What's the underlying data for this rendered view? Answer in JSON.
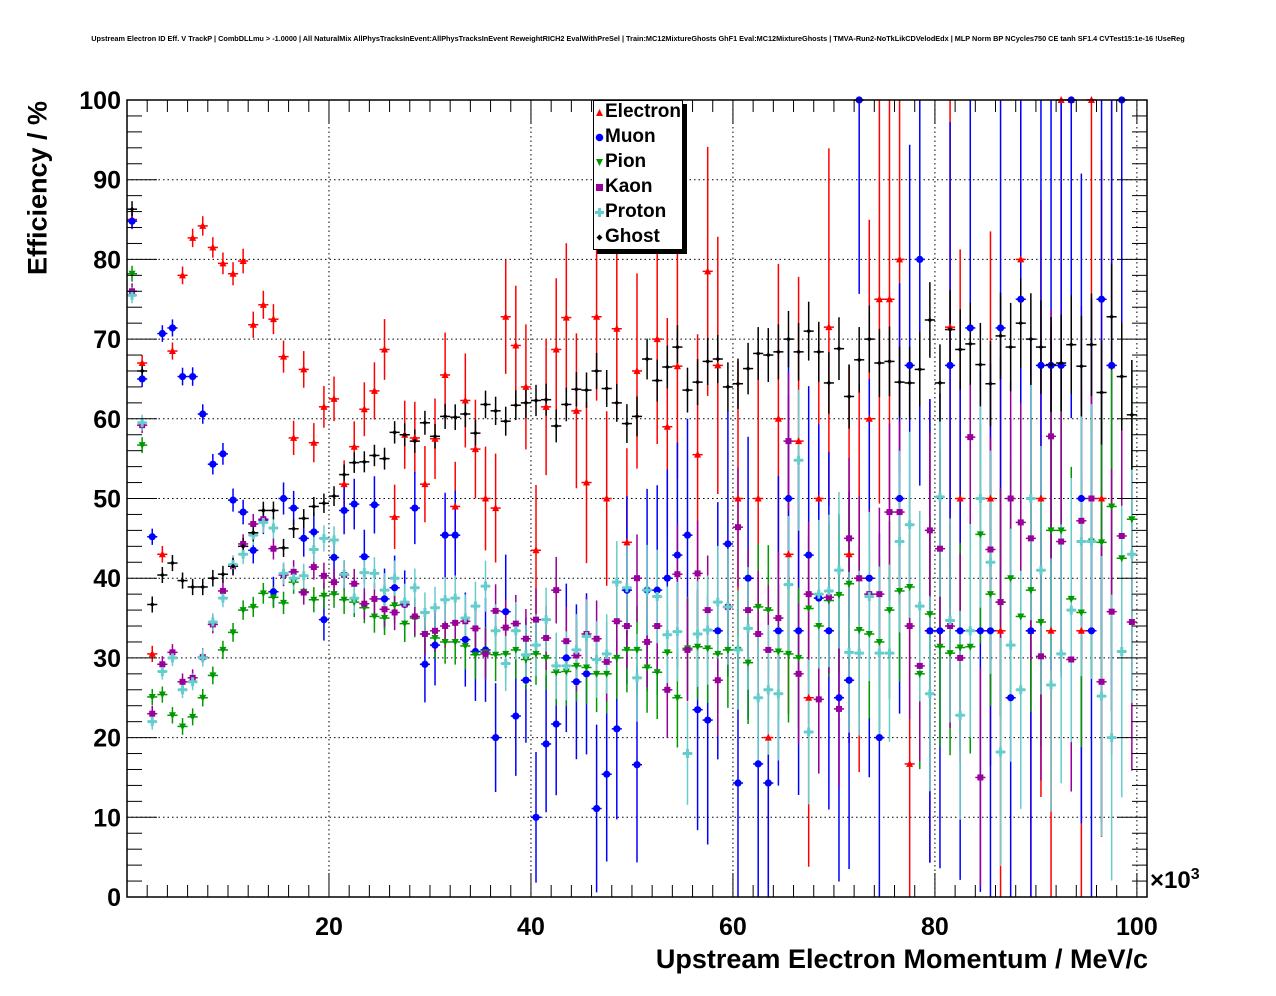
{
  "chart_data": {
    "type": "scatter",
    "title": "Upstream Electron ID Eff. V TrackP | CombDLLmu > -1.0000 | All NaturalMix AllPhysTracksInEvent:AllPhysTracksInEvent ReweightRICH2 EvalWithPreSel | Train:MC12MixtureGhosts GhF1 Eval:MC12MixtureGhosts | TMVA-Run2-NoTkLikCDVelodEdx | MLP Norm BP NCycles750 CE tanh SF1.4 CVTest15:1e-16 !UseReg",
    "xlabel": "Upstream Electron Momentum / MeV/c",
    "ylabel": "Efficiency / %",
    "x_multiplier": "×10",
    "x_multiplier_exp": "3",
    "xlim": [
      0,
      101
    ],
    "ylim": [
      0,
      100
    ],
    "x_bin_width": 1,
    "x_first_bin_center": 0.5,
    "xticks": [
      20,
      40,
      60,
      80,
      100
    ],
    "xtick_labels": [
      "20",
      "40",
      "60",
      "80",
      "100"
    ],
    "yticks": [
      0,
      10,
      20,
      30,
      40,
      50,
      60,
      70,
      80,
      90,
      100
    ],
    "ytick_labels": [
      "0",
      "10",
      "20",
      "30",
      "40",
      "50",
      "60",
      "70",
      "80",
      "90",
      "100"
    ],
    "grid": true,
    "legend_placement": "top-center",
    "series": [
      {
        "name": "Electron",
        "color": "#ff0000",
        "marker": "triangle-up",
        "values": [
          85,
          67,
          30.5,
          43,
          68.5,
          78,
          82.7,
          84.2,
          81.5,
          79.5,
          78.2,
          79.8,
          71.8,
          74.3,
          72.5,
          67.8,
          57.6,
          66.2,
          57,
          61.5,
          62.5,
          51.8,
          56.5,
          61.2,
          63.5,
          68.7,
          47.7,
          58,
          57.6,
          51.8,
          57.5,
          65.5,
          49,
          62.3,
          56.2,
          50,
          48.8,
          72.8,
          69.2,
          64,
          43.5,
          61.5,
          68.7,
          72.7,
          61,
          52,
          72.8,
          50,
          71.3,
          44.5,
          66,
          null,
          70,
          59,
          66.6,
          null,
          55.5,
          78.5,
          66.7,
          null,
          50,
          null,
          50,
          20,
          60,
          43,
          57.2,
          25,
          50,
          71.5,
          null,
          43,
          40,
          60,
          75,
          75,
          80,
          16.7,
          null,
          33.4,
          null,
          71.5,
          50,
          null,
          null,
          50,
          33.4,
          null,
          80,
          33.4,
          50,
          33.4,
          100,
          100,
          33.4,
          100,
          50,
          66.7,
          null,
          null
        ]
      },
      {
        "name": "Muon",
        "color": "#0000ff",
        "marker": "circle",
        "values": [
          84.8,
          65,
          45.2,
          70.7,
          71.4,
          65.3,
          65.3,
          60.6,
          54.3,
          55.6,
          49.8,
          48.3,
          43.5,
          47.3,
          38.3,
          50,
          48.8,
          45,
          45.8,
          34.8,
          42.6,
          48.5,
          49.3,
          42.7,
          49.2,
          37.4,
          38.8,
          36.7,
          48.8,
          29.2,
          31.6,
          45.4,
          45.4,
          32.3,
          30.8,
          31,
          20,
          35.8,
          22.7,
          27.2,
          10,
          19.2,
          21.7,
          30,
          27,
          28,
          11.1,
          15.4,
          21.1,
          38.5,
          16.6,
          38.5,
          38.5,
          40,
          42.9,
          45.4,
          23.5,
          22.2,
          33.4,
          44.3,
          14.3,
          40,
          16.7,
          14.3,
          33.4,
          50,
          33.4,
          42.9,
          37.5,
          33.4,
          25,
          27.2,
          100,
          40,
          20,
          null,
          50,
          66.7,
          80,
          33.4,
          33.4,
          66.7,
          33.4,
          71.4,
          33.4,
          33.4,
          71.4,
          25,
          75,
          33.4,
          66.7,
          66.7,
          66.7,
          100,
          50,
          33.4,
          75,
          66.7,
          100,
          null
        ]
      },
      {
        "name": "Pion",
        "color": "#009900",
        "marker": "triangle-down",
        "values": [
          78.2,
          56.7,
          25.1,
          25.4,
          22.8,
          21.4,
          22.6,
          25,
          27.8,
          31,
          33.2,
          36,
          36.4,
          38.1,
          37.6,
          36.9,
          39.5,
          38.3,
          37.3,
          37.8,
          38,
          37.3,
          37,
          36.3,
          35.2,
          35,
          36.6,
          34.3,
          35,
          33,
          32.5,
          32,
          32,
          31.5,
          30.4,
          30.7,
          30.4,
          30.5,
          31,
          29.8,
          30.5,
          30,
          28.2,
          28.3,
          29,
          28.8,
          28,
          28,
          30,
          31,
          31,
          28.8,
          28.2,
          30.7,
          25,
          31.2,
          31.4,
          31.2,
          30.5,
          31,
          31,
          29.4,
          36.4,
          36,
          30.8,
          30.5,
          30,
          36.2,
          34,
          37.2,
          37.9,
          39.3,
          33.5,
          33,
          32,
          36,
          38.4,
          38.9,
          28,
          35.5,
          31.4,
          30.6,
          31.3,
          31.4,
          45.5,
          38,
          37,
          40,
          35.2,
          38.5,
          34.5,
          46,
          46,
          37.4,
          35.7,
          44.6,
          44.5,
          49,
          42.5,
          47.4
        ]
      },
      {
        "name": "Kaon",
        "color": "#990099",
        "marker": "square",
        "values": [
          76,
          59.2,
          23,
          29.2,
          30.7,
          27,
          27.5,
          30.1,
          34.2,
          38.4,
          41.5,
          44.3,
          46.8,
          47.4,
          43.7,
          40.4,
          40.8,
          38.2,
          41.4,
          40.3,
          39.5,
          40.4,
          39.3,
          36.8,
          37.4,
          36.1,
          35.7,
          36.7,
          35.2,
          33,
          33.4,
          34,
          34.4,
          34.6,
          33.7,
          30.5,
          35.9,
          33.8,
          34.3,
          32.4,
          34.8,
          32.5,
          38.5,
          32.1,
          30.3,
          33,
          32.4,
          29.5,
          34.6,
          34,
          40,
          32,
          34,
          26,
          40.5,
          31,
          40.6,
          36,
          27.2,
          36.4,
          46.4,
          36,
          33,
          31,
          35,
          57.2,
          28,
          38,
          24.8,
          37.6,
          23.6,
          45,
          40,
          38,
          38,
          48.3,
          48.3,
          34,
          29,
          46,
          43.7,
          34,
          30,
          57.7,
          15,
          43.6,
          37,
          50,
          47,
          45,
          30.2,
          57.8,
          44.6,
          29.8,
          47.2,
          50,
          27,
          35.8,
          45.3,
          34.5
        ]
      },
      {
        "name": "Proton",
        "color": "#66cccc",
        "marker": "cross",
        "values": [
          75.5,
          59.5,
          22,
          28.3,
          30,
          26,
          27,
          30,
          34.5,
          37.5,
          41.7,
          43,
          45.4,
          47,
          46.3,
          40.6,
          40,
          40.3,
          43.6,
          45,
          44.8,
          40.5,
          37.5,
          40.7,
          40.6,
          38.5,
          40,
          37,
          38.8,
          35.7,
          36.3,
          37.3,
          37.5,
          35,
          36.5,
          39,
          33.4,
          29.3,
          33.4,
          30.4,
          31.6,
          34.8,
          29,
          29,
          31,
          32.7,
          29.8,
          30.5,
          39.5,
          38.8,
          27.5,
          38.5,
          37.7,
          32.9,
          33.3,
          18,
          33,
          33.5,
          37,
          36.4,
          31,
          33.7,
          25,
          26,
          25.5,
          39.2,
          54.8,
          20.7,
          38,
          38.4,
          41,
          30.7,
          30.6,
          37.7,
          30.6,
          30.6,
          44.6,
          46.7,
          36.5,
          25.5,
          50.2,
          34.7,
          22.8,
          33.4,
          50,
          42,
          18.2,
          31.6,
          26,
          50,
          41,
          26.6,
          30.5,
          36,
          44.6,
          44.6,
          25.2,
          20,
          30.8,
          43
        ]
      },
      {
        "name": "Ghost",
        "color": "#000000",
        "marker": "diamond",
        "values": [
          86.3,
          66,
          36.7,
          40.4,
          41.9,
          39.7,
          38.9,
          38.9,
          40,
          40.5,
          41.5,
          44,
          45.7,
          48.5,
          48.5,
          43.8,
          46.2,
          47.5,
          49,
          49.4,
          50.3,
          53,
          54.5,
          54.6,
          55.4,
          55,
          58.3,
          58,
          57.2,
          59.5,
          57.8,
          60.3,
          60.2,
          60.6,
          58.2,
          61.8,
          61,
          59.7,
          61.7,
          62,
          62.3,
          62.4,
          59.1,
          61.8,
          63.7,
          63.6,
          66,
          63.8,
          62,
          59.4,
          60.3,
          67.5,
          64.8,
          66.5,
          69,
          63.6,
          64.6,
          67.2,
          67.5,
          64,
          64.4,
          66.3,
          68.2,
          68,
          68.4,
          70,
          68.4,
          71,
          68.4,
          64.5,
          68.8,
          62.8,
          67.4,
          70,
          67,
          67.2,
          64.6,
          64.5,
          66.2,
          72.4,
          64.5,
          71.2,
          68.7,
          69.4,
          66.8,
          64.4,
          70.4,
          69,
          72,
          70,
          69,
          66.8,
          67,
          69.3,
          66.6,
          69.3,
          63.3,
          72.8,
          65.3,
          60.5
        ]
      }
    ]
  }
}
